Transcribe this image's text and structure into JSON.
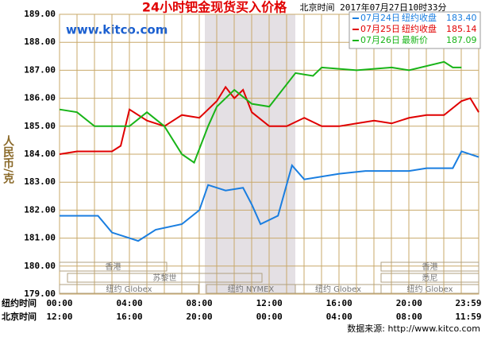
{
  "chart_data": {
    "type": "line",
    "title": "24小时钯金现货买入价格",
    "subtitle": "北京时间 2017年07月27日10时33分",
    "site": "www.kitco.com",
    "y_label": "人民币/克",
    "source": "数据来源: http://www.kitco.com",
    "x_row_labels": [
      "纽约时间",
      "北京时间"
    ],
    "xlim": [
      0,
      23.983
    ],
    "xticks": [
      {
        "value": 0,
        "label": "00:00"
      },
      {
        "value": 4,
        "label": "04:00"
      },
      {
        "value": 8,
        "label": "08:00"
      },
      {
        "value": 12,
        "label": "12:00"
      },
      {
        "value": 16,
        "label": "16:00"
      },
      {
        "value": 20,
        "label": "20:00"
      },
      {
        "value": 23.983,
        "label": "23:59"
      }
    ],
    "xticks2": [
      {
        "value": 0,
        "label": "12:00"
      },
      {
        "value": 4,
        "label": "16:00"
      },
      {
        "value": 8,
        "label": "20:00"
      },
      {
        "value": 12,
        "label": "00:00"
      },
      {
        "value": 16,
        "label": "04:00"
      },
      {
        "value": 20,
        "label": "08:00"
      },
      {
        "value": 23.983,
        "label": "11:59"
      }
    ],
    "ylim": [
      179,
      189
    ],
    "yticks": [
      {
        "value": 179,
        "label": "179.00"
      },
      {
        "value": 180,
        "label": "180.00"
      },
      {
        "value": 181,
        "label": "181.00"
      },
      {
        "value": 182,
        "label": "182.00"
      },
      {
        "value": 183,
        "label": "183.00"
      },
      {
        "value": 184,
        "label": "184.00"
      },
      {
        "value": 185,
        "label": "185.00"
      },
      {
        "value": 186,
        "label": "186.00"
      },
      {
        "value": 187,
        "label": "187.00"
      },
      {
        "value": 188,
        "label": "188.00"
      },
      {
        "value": 189,
        "label": "189.00"
      }
    ],
    "grid": true,
    "sessions": [
      "香港",
      "苏黎世",
      "纽约 Globex",
      "纽约 NYMEX",
      "纽约 Globex",
      "香港",
      "悉尼",
      "纽约 Globex"
    ],
    "series": [
      {
        "name": "07月24日",
        "legend_label": "纽约收盘",
        "legend_value": "183.40",
        "color": "#1a7ee0",
        "x": [
          0,
          1,
          2.2,
          3,
          4,
          4.5,
          5.5,
          7,
          8,
          8.5,
          9.5,
          10.5,
          11,
          11.5,
          12.5,
          13.3,
          14,
          16,
          17.5,
          20,
          21,
          22.5,
          23,
          23.983
        ],
        "values": [
          181.8,
          181.8,
          181.8,
          181.2,
          181.0,
          180.9,
          181.3,
          181.5,
          182.0,
          182.9,
          182.7,
          182.8,
          182.2,
          181.5,
          181.8,
          183.6,
          183.1,
          183.3,
          183.4,
          183.4,
          183.5,
          183.5,
          184.1,
          183.9
        ]
      },
      {
        "name": "07月25日",
        "legend_label": "纽约收盘",
        "legend_value": "185.14",
        "color": "#e00000",
        "x": [
          0,
          1,
          3,
          3.5,
          4,
          5,
          6,
          7,
          8,
          8.5,
          9,
          9.5,
          10,
          10.5,
          11,
          12,
          13,
          14,
          15,
          16,
          17,
          18,
          19,
          20,
          21,
          22,
          23,
          23.5,
          23.983
        ],
        "values": [
          184.0,
          184.1,
          184.1,
          184.3,
          185.6,
          185.2,
          185.0,
          185.4,
          185.3,
          185.6,
          185.9,
          186.4,
          186.0,
          186.3,
          185.5,
          185.0,
          185.0,
          185.3,
          185.0,
          185.0,
          185.1,
          185.2,
          185.1,
          185.3,
          185.4,
          185.4,
          185.9,
          186.0,
          185.5
        ]
      },
      {
        "name": "07月26日",
        "legend_label": "最新价",
        "legend_value": "187.09",
        "color": "#18b418",
        "x": [
          0,
          1,
          2,
          3,
          4,
          5,
          6,
          7,
          7.7,
          8.5,
          9,
          10,
          11,
          12,
          13.5,
          14.5,
          15,
          17,
          19,
          20,
          22,
          22.5,
          23
        ],
        "values": [
          185.6,
          185.5,
          185.0,
          185.0,
          185.0,
          185.5,
          185.0,
          184.0,
          183.7,
          185.0,
          185.7,
          186.3,
          185.8,
          185.7,
          186.9,
          186.8,
          187.1,
          187.0,
          187.1,
          187.0,
          187.3,
          187.1,
          187.1
        ]
      }
    ]
  }
}
